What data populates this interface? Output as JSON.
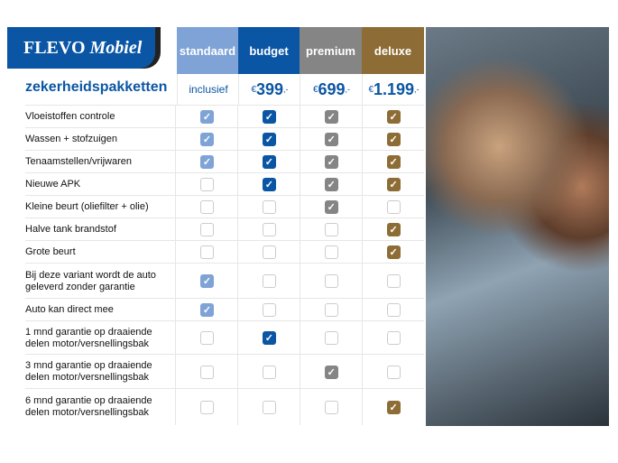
{
  "logo": {
    "text_a": "FLEVO",
    "text_b": "Mobiel"
  },
  "title": "zekerheidspakketten",
  "packages": [
    {
      "name": "standaard",
      "price": "inclusief",
      "color": "#7fa3d6"
    },
    {
      "name": "budget",
      "price_symbol": "€",
      "price": "399",
      "price_suffix": ",-",
      "color": "#0b56a4"
    },
    {
      "name": "premium",
      "price_symbol": "€",
      "price": "699",
      "price_suffix": ",-",
      "color": "#858585"
    },
    {
      "name": "deluxe",
      "price_symbol": "€",
      "price": "1.199",
      "price_suffix": ",-",
      "color": "#8d6d35"
    }
  ],
  "rows": [
    {
      "label": "Vloeistoffen controle",
      "checks": [
        1,
        1,
        1,
        1
      ]
    },
    {
      "label": "Wassen + stofzuigen",
      "checks": [
        1,
        1,
        1,
        1
      ]
    },
    {
      "label": "Tenaamstellen/vrijwaren",
      "checks": [
        1,
        1,
        1,
        1
      ]
    },
    {
      "label": "Nieuwe APK",
      "checks": [
        0,
        1,
        1,
        1
      ]
    },
    {
      "label": "Kleine beurt (oliefilter + olie)",
      "checks": [
        0,
        0,
        1,
        0
      ]
    },
    {
      "label": "Halve tank brandstof",
      "checks": [
        0,
        0,
        0,
        1
      ]
    },
    {
      "label": "Grote beurt",
      "checks": [
        0,
        0,
        0,
        1
      ]
    },
    {
      "label": "Bij deze variant wordt de auto geleverd zonder garantie",
      "checks": [
        1,
        0,
        0,
        0
      ]
    },
    {
      "label": "Auto kan direct mee",
      "checks": [
        1,
        0,
        0,
        0
      ]
    },
    {
      "label": "1 mnd garantie op draaiende delen motor/versnellingsbak",
      "checks": [
        0,
        1,
        0,
        0
      ]
    },
    {
      "label": "3 mnd garantie op draaiende delen motor/versnellingsbak",
      "checks": [
        0,
        0,
        1,
        0
      ]
    },
    {
      "label": "6 mnd garantie op draaiende delen motor/versnellingsbak",
      "checks": [
        0,
        0,
        0,
        1
      ]
    }
  ]
}
